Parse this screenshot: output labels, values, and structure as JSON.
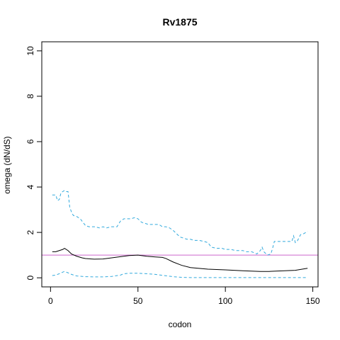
{
  "chart_data": {
    "type": "line",
    "title": "Rv1875",
    "xlabel": "codon",
    "ylabel": "omega (dN/dS)",
    "xlim": [
      -5,
      153
    ],
    "ylim": [
      -0.4,
      10.4
    ],
    "xticks": [
      0,
      50,
      100,
      150
    ],
    "yticks": [
      0,
      2,
      4,
      6,
      8,
      10
    ],
    "reference_line": {
      "y": 1,
      "color": "#cc66cc"
    },
    "series": [
      {
        "style": "solid",
        "color": "#000000",
        "x": [
          1,
          3,
          5,
          7,
          8,
          10,
          12,
          15,
          18,
          20,
          25,
          30,
          35,
          40,
          45,
          50,
          55,
          60,
          64,
          66,
          70,
          75,
          80,
          90,
          100,
          110,
          120,
          125,
          130,
          140,
          147
        ],
        "y": [
          1.15,
          1.15,
          1.2,
          1.25,
          1.3,
          1.2,
          1.05,
          0.95,
          0.88,
          0.85,
          0.82,
          0.83,
          0.88,
          0.93,
          0.98,
          1.0,
          0.95,
          0.92,
          0.9,
          0.85,
          0.7,
          0.55,
          0.45,
          0.38,
          0.35,
          0.31,
          0.28,
          0.28,
          0.3,
          0.33,
          0.42
        ]
      },
      {
        "style": "dashed",
        "color": "#33aadd",
        "x": [
          1,
          3,
          4,
          5,
          6,
          7,
          8,
          9,
          10,
          11,
          12,
          13,
          15,
          17,
          18,
          20,
          22,
          25,
          28,
          30,
          32,
          35,
          38,
          40,
          42,
          44,
          46,
          48,
          50,
          52,
          54,
          56,
          60,
          62,
          64,
          66,
          68,
          70,
          72,
          74,
          76,
          78,
          80,
          82,
          85,
          88,
          90,
          92,
          95,
          98,
          100,
          103,
          106,
          110,
          112,
          115,
          118,
          120,
          121,
          122,
          124,
          126,
          127,
          128,
          130,
          133,
          136,
          138,
          139,
          140,
          141,
          143,
          145,
          147
        ],
        "y": [
          3.65,
          3.65,
          3.4,
          3.45,
          3.75,
          3.8,
          3.85,
          3.8,
          3.8,
          3.1,
          2.9,
          2.75,
          2.7,
          2.6,
          2.5,
          2.3,
          2.25,
          2.25,
          2.2,
          2.25,
          2.2,
          2.25,
          2.25,
          2.5,
          2.6,
          2.6,
          2.6,
          2.65,
          2.6,
          2.45,
          2.4,
          2.35,
          2.35,
          2.35,
          2.25,
          2.25,
          2.2,
          2.1,
          1.95,
          1.8,
          1.75,
          1.7,
          1.7,
          1.65,
          1.65,
          1.6,
          1.55,
          1.35,
          1.3,
          1.3,
          1.25,
          1.25,
          1.2,
          1.2,
          1.15,
          1.15,
          1.05,
          1.2,
          1.35,
          1.15,
          1.0,
          1.05,
          1.3,
          1.6,
          1.6,
          1.6,
          1.6,
          1.6,
          1.85,
          1.55,
          1.6,
          1.9,
          1.95,
          2.05
        ]
      },
      {
        "style": "dashed",
        "color": "#33aadd",
        "x": [
          1,
          3,
          5,
          7,
          8,
          10,
          12,
          15,
          20,
          25,
          30,
          35,
          40,
          42,
          45,
          50,
          55,
          60,
          65,
          70,
          75,
          80,
          90,
          100,
          110,
          120,
          130,
          140,
          147
        ],
        "y": [
          0.1,
          0.12,
          0.18,
          0.25,
          0.28,
          0.22,
          0.15,
          0.08,
          0.05,
          0.04,
          0.04,
          0.06,
          0.12,
          0.18,
          0.2,
          0.2,
          0.18,
          0.15,
          0.1,
          0.05,
          0.02,
          0.01,
          0.01,
          0.01,
          0.01,
          0.01,
          0.01,
          0.01,
          0.01
        ]
      }
    ]
  }
}
